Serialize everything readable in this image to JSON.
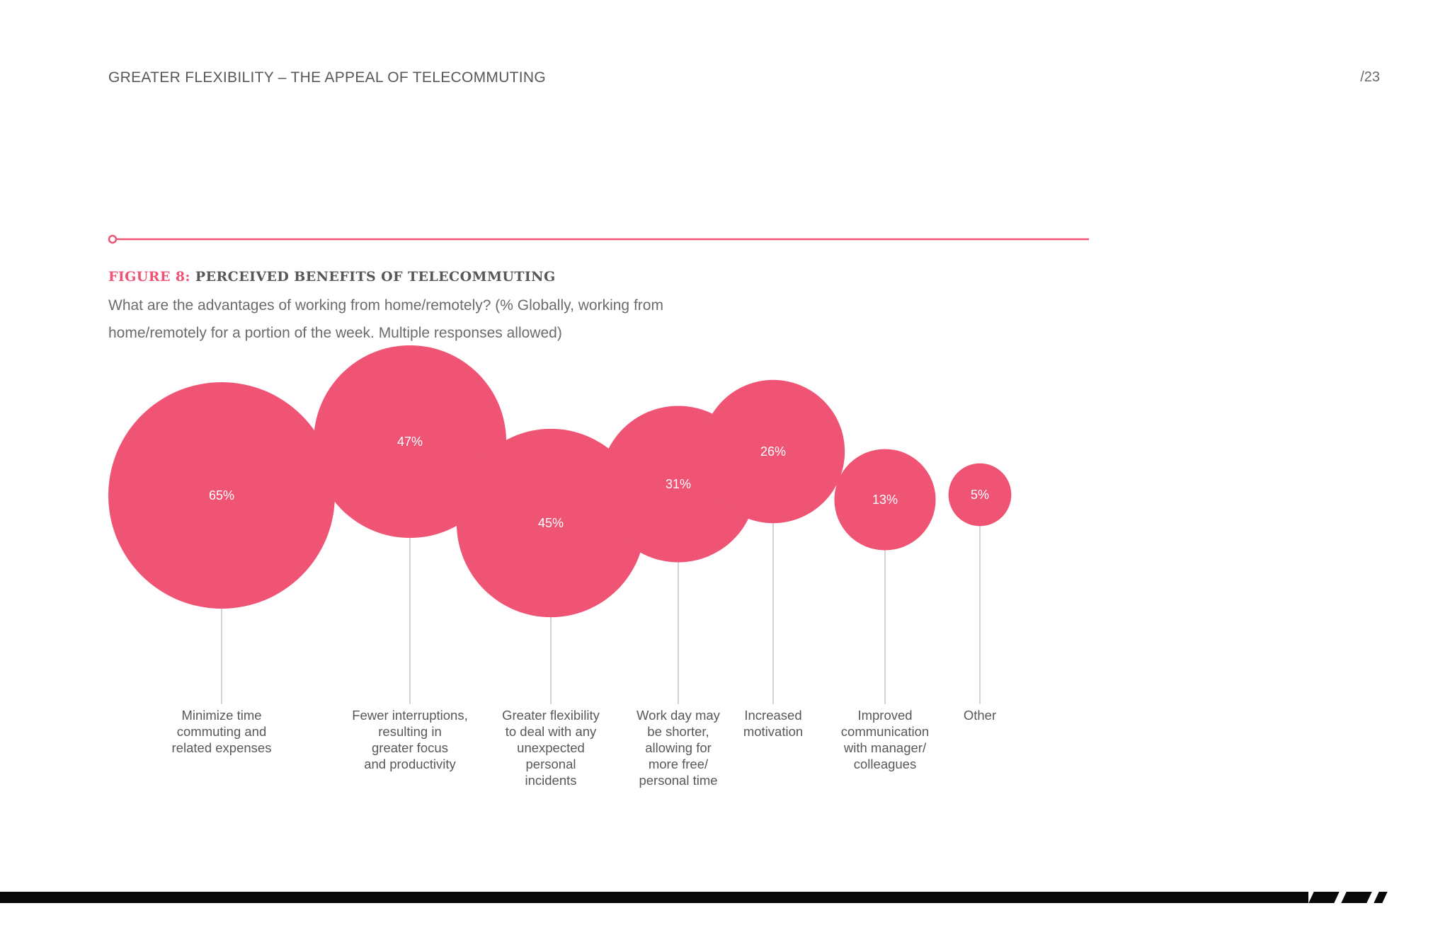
{
  "header": {
    "running_title": "GREATER FLEXIBILITY – THE APPEAL OF TELECOMMUTING",
    "page_number": "/23"
  },
  "figure": {
    "label": "FIGURE 8:",
    "title": "PERCEIVED BENEFITS OF TELECOMMUTING",
    "subtitle_line1": "What are the advantages of working from home/remotely? (% Globally, working from",
    "subtitle_line2": "home/remotely for a portion of the week. Multiple responses allowed)"
  },
  "colors": {
    "accent": "#ef5475",
    "text": "#58585a",
    "stem": "#c8c8c8"
  },
  "chart_data": {
    "type": "bubble",
    "title": "PERCEIVED BENEFITS OF TELECOMMUTING",
    "unit": "%",
    "categories": [
      "Minimize time\ncommuting and\nrelated expenses",
      "Fewer interruptions,\nresulting in\ngreater focus\nand productivity",
      "Greater flexibility\nto deal with any\nunexpected\npersonal\nincidents",
      "Work day may\nbe shorter,\nallowing for\nmore free/\npersonal time",
      "Increased\nmotivation",
      "Improved\ncommunication\nwith manager/\ncolleagues",
      "Other"
    ],
    "values": [
      65,
      47,
      45,
      31,
      26,
      13,
      5
    ],
    "value_labels": [
      "65%",
      "47%",
      "45%",
      "31%",
      "26%",
      "13%",
      "5%"
    ]
  }
}
